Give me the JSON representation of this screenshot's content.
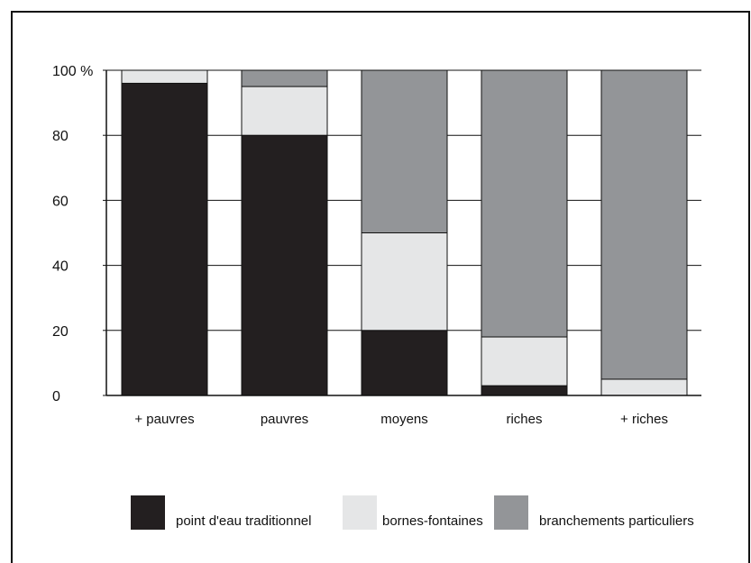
{
  "chart_data": {
    "type": "bar",
    "stacked": true,
    "percent": true,
    "categories": [
      "+ pauvres",
      "pauvres",
      "moyens",
      "riches",
      "+ riches"
    ],
    "series": [
      {
        "name": "point d'eau traditionnel",
        "values": [
          96,
          80,
          20,
          3,
          0
        ],
        "color": "#231f20"
      },
      {
        "name": "bornes-fontaines",
        "values": [
          4,
          15,
          30,
          15,
          5
        ],
        "color": "#e5e6e7"
      },
      {
        "name": "branchements particuliers",
        "values": [
          0,
          5,
          50,
          82,
          95
        ],
        "color": "#939598"
      }
    ],
    "yticks": [
      "0",
      "20",
      "40",
      "60",
      "80",
      "100 %"
    ],
    "ylim": [
      0,
      100
    ],
    "grid": true,
    "legend_position": "bottom"
  }
}
